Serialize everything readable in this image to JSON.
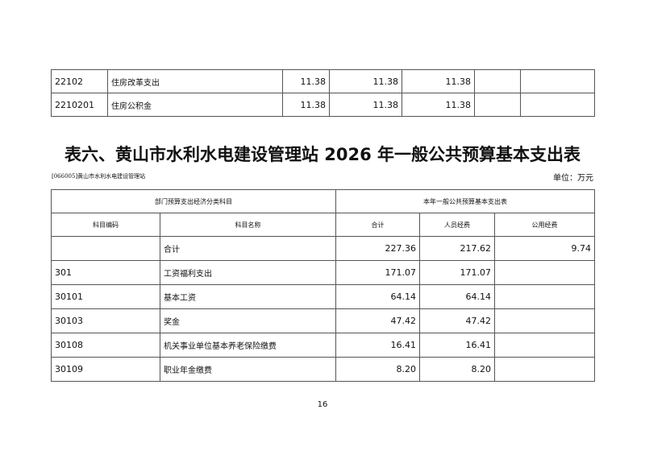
{
  "prev_table": {
    "rows": [
      {
        "code": "22102",
        "name": "住房改革支出",
        "v1": "11.38",
        "v2": "11.38",
        "v3": "11.38",
        "v4": "",
        "v5": ""
      },
      {
        "code": "2210201",
        "name": "住房公积金",
        "v1": "11.38",
        "v2": "11.38",
        "v3": "11.38",
        "v4": "",
        "v5": ""
      }
    ]
  },
  "title": "表六、黄山市水利水电建设管理站 2026 年一般公共预算基本支出表",
  "org": "[066005]黄山市水利水电建设管理站",
  "unit": "单位：万元",
  "table": {
    "group_headers": [
      "部门预算支出经济分类科目",
      "本年一般公共预算基本支出表"
    ],
    "headers": [
      "科目编码",
      "科目名称",
      "合计",
      "人员经费",
      "公用经费"
    ],
    "rows": [
      {
        "code": "",
        "name": "合计",
        "total": "227.36",
        "personnel": "217.62",
        "public": "9.74"
      },
      {
        "code": "301",
        "name": "工资福利支出",
        "total": "171.07",
        "personnel": "171.07",
        "public": ""
      },
      {
        "code": "30101",
        "name": "基本工资",
        "total": "64.14",
        "personnel": "64.14",
        "public": ""
      },
      {
        "code": "30103",
        "name": "奖金",
        "total": "47.42",
        "personnel": "47.42",
        "public": ""
      },
      {
        "code": "30108",
        "name": "机关事业单位基本养老保险缴费",
        "total": "16.41",
        "personnel": "16.41",
        "public": ""
      },
      {
        "code": "30109",
        "name": "职业年金缴费",
        "total": "8.20",
        "personnel": "8.20",
        "public": ""
      }
    ]
  },
  "page_number": "16"
}
